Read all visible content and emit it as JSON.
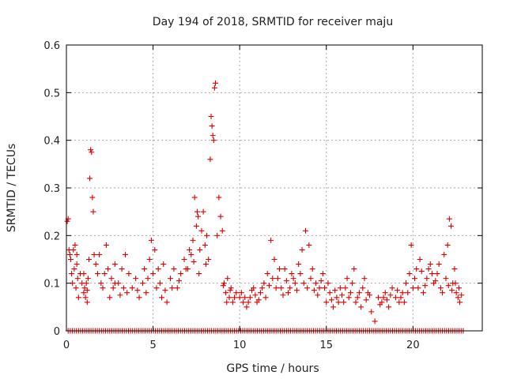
{
  "chart_data": {
    "type": "scatter",
    "title": "Day 194 of 2018, SRMTID for receiver maju",
    "xlabel": "GPS time / hours",
    "ylabel": "SRMTID / TECUs",
    "xlim": [
      0,
      24
    ],
    "ylim": [
      0,
      0.6
    ],
    "grid": true,
    "marker": "+",
    "xticks": [
      0,
      5,
      10,
      15,
      20
    ],
    "yticks": [
      0,
      0.1,
      0.2,
      0.3,
      0.4,
      0.5,
      0.6
    ],
    "series": [
      {
        "name": "SRMTID",
        "color": "#dd0000",
        "points": [
          [
            0.05,
            0.23
          ],
          [
            0.1,
            0.235
          ],
          [
            0.15,
            0.17
          ],
          [
            0.2,
            0.16
          ],
          [
            0.25,
            0.15
          ],
          [
            0.3,
            0.12
          ],
          [
            0.35,
            0.1
          ],
          [
            0.4,
            0.17
          ],
          [
            0.45,
            0.13
          ],
          [
            0.5,
            0.18
          ],
          [
            0.55,
            0.09
          ],
          [
            0.6,
            0.14
          ],
          [
            0.65,
            0.11
          ],
          [
            0.7,
            0.07
          ],
          [
            0.8,
            0.12
          ],
          [
            0.9,
            0.1
          ],
          [
            1.0,
            0.08
          ],
          [
            1.05,
            0.09
          ],
          [
            1.1,
            0.07
          ],
          [
            1.15,
            0.1
          ],
          [
            1.2,
            0.06
          ],
          [
            1.25,
            0.11
          ],
          [
            1.3,
            0.15
          ],
          [
            1.35,
            0.32
          ],
          [
            1.4,
            0.38
          ],
          [
            1.45,
            0.375
          ],
          [
            1.5,
            0.28
          ],
          [
            1.55,
            0.25
          ],
          [
            1.6,
            0.16
          ],
          [
            1.7,
            0.14
          ],
          [
            1.8,
            0.12
          ],
          [
            1.9,
            0.16
          ],
          [
            2.0,
            0.1
          ],
          [
            2.1,
            0.09
          ],
          [
            2.2,
            0.12
          ],
          [
            2.3,
            0.18
          ],
          [
            2.4,
            0.13
          ],
          [
            2.5,
            0.07
          ],
          [
            2.6,
            0.11
          ],
          [
            2.7,
            0.09
          ],
          [
            2.8,
            0.14
          ],
          [
            3.0,
            0.1
          ],
          [
            3.2,
            0.13
          ],
          [
            3.4,
            0.16
          ],
          [
            3.5,
            0.08
          ],
          [
            3.6,
            0.12
          ],
          [
            3.8,
            0.09
          ],
          [
            4.0,
            0.11
          ],
          [
            4.2,
            0.07
          ],
          [
            4.4,
            0.1
          ],
          [
            4.5,
            0.13
          ],
          [
            4.6,
            0.08
          ],
          [
            4.8,
            0.15
          ],
          [
            4.9,
            0.19
          ],
          [
            5.0,
            0.12
          ],
          [
            5.1,
            0.17
          ],
          [
            5.2,
            0.09
          ],
          [
            5.4,
            0.1
          ],
          [
            5.5,
            0.07
          ],
          [
            5.6,
            0.14
          ],
          [
            5.8,
            0.06
          ],
          [
            6.0,
            0.11
          ],
          [
            6.2,
            0.13
          ],
          [
            6.4,
            0.09
          ],
          [
            6.6,
            0.12
          ],
          [
            6.8,
            0.15
          ],
          [
            7.0,
            0.13
          ],
          [
            7.1,
            0.17
          ],
          [
            7.2,
            0.16
          ],
          [
            7.3,
            0.19
          ],
          [
            7.4,
            0.28
          ],
          [
            7.5,
            0.22
          ],
          [
            7.55,
            0.25
          ],
          [
            7.6,
            0.24
          ],
          [
            7.7,
            0.17
          ],
          [
            7.8,
            0.21
          ],
          [
            7.9,
            0.25
          ],
          [
            8.0,
            0.18
          ],
          [
            8.1,
            0.2
          ],
          [
            8.2,
            0.15
          ],
          [
            8.3,
            0.36
          ],
          [
            8.35,
            0.45
          ],
          [
            8.4,
            0.43
          ],
          [
            8.45,
            0.41
          ],
          [
            8.5,
            0.4
          ],
          [
            8.55,
            0.51
          ],
          [
            8.6,
            0.52
          ],
          [
            8.7,
            0.2
          ],
          [
            8.8,
            0.28
          ],
          [
            8.9,
            0.24
          ],
          [
            9.0,
            0.21
          ],
          [
            9.1,
            0.1
          ],
          [
            9.2,
            0.08
          ],
          [
            9.3,
            0.11
          ],
          [
            9.4,
            0.07
          ],
          [
            9.5,
            0.09
          ],
          [
            9.6,
            0.06
          ],
          [
            9.8,
            0.08
          ],
          [
            10.0,
            0.07
          ],
          [
            10.2,
            0.06
          ],
          [
            10.4,
            0.05
          ],
          [
            10.6,
            0.07
          ],
          [
            10.8,
            0.09
          ],
          [
            11.0,
            0.06
          ],
          [
            11.2,
            0.08
          ],
          [
            11.4,
            0.1
          ],
          [
            11.6,
            0.12
          ],
          [
            11.8,
            0.19
          ],
          [
            12.0,
            0.15
          ],
          [
            12.2,
            0.11
          ],
          [
            12.4,
            0.09
          ],
          [
            12.6,
            0.13
          ],
          [
            12.8,
            0.08
          ],
          [
            13.0,
            0.12
          ],
          [
            13.2,
            0.1
          ],
          [
            13.4,
            0.14
          ],
          [
            13.6,
            0.17
          ],
          [
            13.8,
            0.21
          ],
          [
            14.0,
            0.18
          ],
          [
            14.2,
            0.13
          ],
          [
            14.4,
            0.1
          ],
          [
            14.6,
            0.09
          ],
          [
            14.8,
            0.12
          ],
          [
            15.0,
            0.06
          ],
          [
            15.2,
            0.08
          ],
          [
            15.4,
            0.05
          ],
          [
            15.6,
            0.07
          ],
          [
            15.8,
            0.09
          ],
          [
            16.0,
            0.06
          ],
          [
            16.2,
            0.11
          ],
          [
            16.4,
            0.08
          ],
          [
            16.6,
            0.13
          ],
          [
            16.8,
            0.07
          ],
          [
            17.0,
            0.05
          ],
          [
            17.2,
            0.11
          ],
          [
            17.4,
            0.08
          ],
          [
            17.6,
            0.04
          ],
          [
            17.8,
            0.02
          ],
          [
            18.0,
            0.07
          ],
          [
            18.2,
            0.06
          ],
          [
            18.4,
            0.08
          ],
          [
            18.6,
            0.05
          ],
          [
            18.8,
            0.09
          ],
          [
            19.0,
            0.07
          ],
          [
            19.2,
            0.06
          ],
          [
            19.4,
            0.08
          ],
          [
            19.6,
            0.1
          ],
          [
            19.8,
            0.12
          ],
          [
            19.9,
            0.18
          ],
          [
            20.0,
            0.09
          ],
          [
            20.2,
            0.13
          ],
          [
            20.4,
            0.15
          ],
          [
            20.6,
            0.08
          ],
          [
            20.8,
            0.11
          ],
          [
            21.0,
            0.14
          ],
          [
            21.2,
            0.1
          ],
          [
            21.4,
            0.12
          ],
          [
            21.6,
            0.09
          ],
          [
            21.8,
            0.16
          ],
          [
            22.0,
            0.18
          ],
          [
            22.1,
            0.235
          ],
          [
            22.2,
            0.22
          ],
          [
            22.3,
            0.1
          ],
          [
            22.4,
            0.13
          ],
          [
            22.5,
            0.08
          ],
          [
            22.6,
            0.07
          ],
          [
            22.7,
            0.06
          ],
          [
            0.6,
            0.16
          ],
          [
            1.0,
            0.12
          ],
          [
            1.2,
            0.085
          ],
          [
            2.8,
            0.1
          ],
          [
            3.1,
            0.075
          ],
          [
            3.3,
            0.09
          ],
          [
            4.1,
            0.085
          ],
          [
            4.7,
            0.11
          ],
          [
            5.3,
            0.13
          ],
          [
            5.7,
            0.085
          ],
          [
            6.1,
            0.09
          ],
          [
            6.5,
            0.105
          ],
          [
            6.9,
            0.13
          ],
          [
            7.35,
            0.145
          ],
          [
            7.65,
            0.12
          ],
          [
            8.05,
            0.14
          ],
          [
            9.05,
            0.095
          ],
          [
            9.25,
            0.06
          ],
          [
            9.45,
            0.085
          ],
          [
            9.7,
            0.07
          ],
          [
            10.1,
            0.08
          ],
          [
            10.3,
            0.07
          ],
          [
            10.5,
            0.06
          ],
          [
            10.7,
            0.085
          ],
          [
            10.9,
            0.075
          ],
          [
            11.1,
            0.065
          ],
          [
            11.3,
            0.09
          ],
          [
            11.5,
            0.07
          ],
          [
            11.7,
            0.095
          ],
          [
            11.9,
            0.11
          ],
          [
            12.1,
            0.09
          ],
          [
            12.3,
            0.13
          ],
          [
            12.5,
            0.075
          ],
          [
            12.7,
            0.105
          ],
          [
            12.9,
            0.09
          ],
          [
            13.1,
            0.11
          ],
          [
            13.3,
            0.085
          ],
          [
            13.5,
            0.12
          ],
          [
            13.7,
            0.1
          ],
          [
            13.9,
            0.09
          ],
          [
            14.1,
            0.11
          ],
          [
            14.3,
            0.085
          ],
          [
            14.5,
            0.075
          ],
          [
            14.7,
            0.105
          ],
          [
            14.9,
            0.09
          ],
          [
            15.1,
            0.1
          ],
          [
            15.3,
            0.065
          ],
          [
            15.5,
            0.085
          ],
          [
            15.7,
            0.06
          ],
          [
            15.9,
            0.075
          ],
          [
            16.1,
            0.09
          ],
          [
            16.3,
            0.07
          ],
          [
            16.5,
            0.1
          ],
          [
            16.7,
            0.06
          ],
          [
            16.9,
            0.08
          ],
          [
            17.1,
            0.09
          ],
          [
            17.3,
            0.065
          ],
          [
            17.5,
            0.075
          ],
          [
            18.1,
            0.055
          ],
          [
            18.3,
            0.07
          ],
          [
            18.5,
            0.065
          ],
          [
            18.7,
            0.075
          ],
          [
            19.1,
            0.085
          ],
          [
            19.3,
            0.07
          ],
          [
            19.5,
            0.06
          ],
          [
            19.7,
            0.08
          ],
          [
            20.1,
            0.11
          ],
          [
            20.3,
            0.09
          ],
          [
            20.5,
            0.125
          ],
          [
            20.7,
            0.095
          ],
          [
            20.9,
            0.13
          ],
          [
            21.1,
            0.12
          ],
          [
            21.3,
            0.105
          ],
          [
            21.5,
            0.14
          ],
          [
            21.7,
            0.08
          ],
          [
            21.9,
            0.11
          ],
          [
            22.05,
            0.095
          ],
          [
            22.25,
            0.085
          ],
          [
            22.45,
            0.1
          ],
          [
            22.65,
            0.09
          ],
          [
            22.8,
            0.075
          ]
        ]
      },
      {
        "name": "zero-baseline",
        "color": "#dd0000",
        "x_range": [
          0.1,
          22.9
        ],
        "x_step": 0.12,
        "y": 0
      }
    ]
  }
}
